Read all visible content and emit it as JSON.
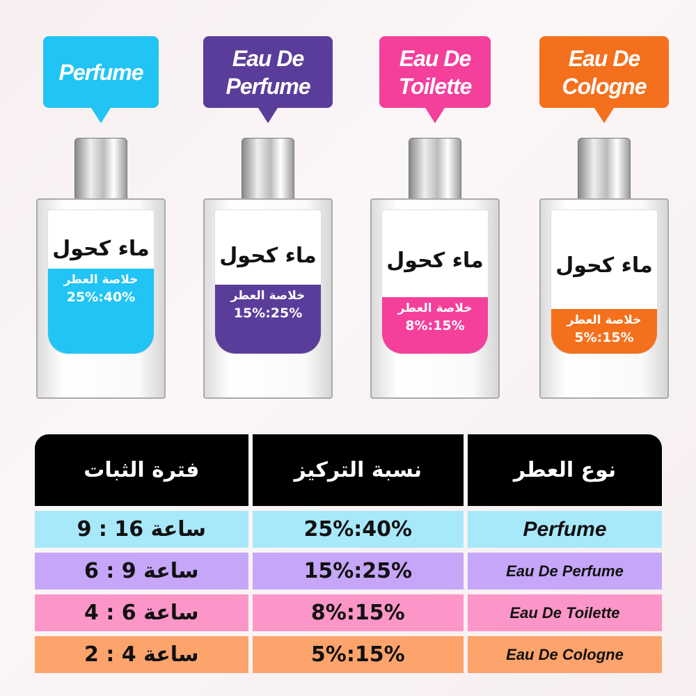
{
  "products": [
    {
      "label": "Perfume",
      "color": "#21c4f4",
      "water": "ماء كحول",
      "essence": "خلاصة العطر",
      "ratio": "25%:40%",
      "fill_percent": 42
    },
    {
      "label": "Eau De Perfume",
      "color": "#5a3d9a",
      "water": "ماء كحول",
      "essence": "خلاصة العطر",
      "ratio": "15%:25%",
      "fill_percent": 34
    },
    {
      "label": "Eau De Toilette",
      "color": "#f43f9b",
      "water": "ماء كحول",
      "essence": "خلاصة العطر",
      "ratio": "8%:15%",
      "fill_percent": 28
    },
    {
      "label": "Eau De Cologne",
      "color": "#f4701c",
      "water": "ماء كحول",
      "essence": "خلاصة العطر",
      "ratio": "5%:15%",
      "fill_percent": 22
    }
  ],
  "table": {
    "headers": [
      "فترة الثبات",
      "نسبة التركيز",
      "نوع العطر"
    ],
    "rows": [
      {
        "duration": "9 : 16 ساعة",
        "concentration": "25%:40%",
        "type": "Perfume",
        "color": "#a8e8fb"
      },
      {
        "duration": "6 : 9 ساعة",
        "concentration": "15%:25%",
        "type": "Eau De Perfume",
        "color": "#c6a6f8"
      },
      {
        "duration": "4 : 6 ساعة",
        "concentration": "8%:15%",
        "type": "Eau De Toilette",
        "color": "#fd96c8"
      },
      {
        "duration": "2 : 4 ساعة",
        "concentration": "5%:15%",
        "type": "Eau De Cologne",
        "color": "#fda36c"
      }
    ]
  }
}
